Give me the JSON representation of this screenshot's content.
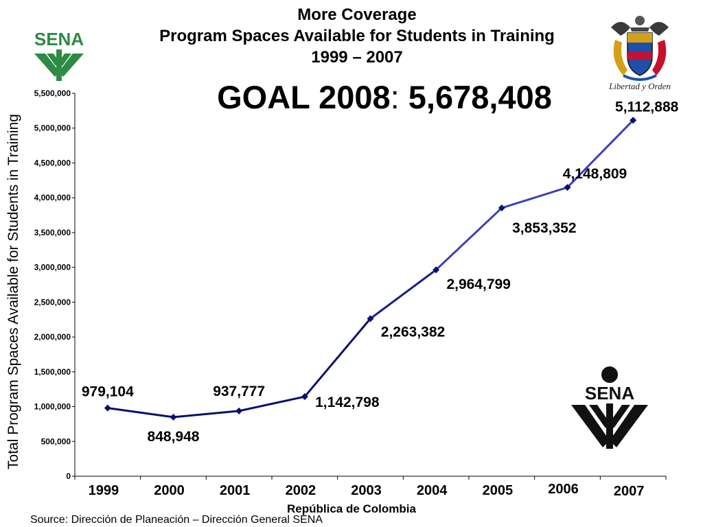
{
  "title": {
    "line1": "More Coverage",
    "line2": "Program Spaces Available for Students in Training",
    "line3": "1999 – 2007"
  },
  "goal": {
    "label": "GOAL 2008",
    "separator": ":",
    "value": "5,678,408"
  },
  "y_axis_label": "Total Program Spaces Available for Students in Training",
  "footer": {
    "center": "República de Colombia",
    "source": "Source: Dirección de Planeación – Dirección General SENA"
  },
  "logos": {
    "sena_text": "SENA",
    "coat_motto": "Libertad y Orden"
  },
  "colors": {
    "line_dark": "#0a0f6e",
    "line_light": "#3b3fb8",
    "marker": "#0a0f6e",
    "sena_green": "#2e8b43",
    "sena_black": "#111111"
  },
  "chart_data": {
    "type": "line",
    "categories": [
      "1999",
      "2000",
      "2001",
      "2002",
      "2003",
      "2004",
      "2005",
      "2006",
      "2007"
    ],
    "values": [
      979104,
      848948,
      937777,
      1142798,
      2263382,
      2964799,
      3853352,
      4148809,
      5112888
    ],
    "data_labels": [
      "979,104",
      "848,948",
      "937,777",
      "1,142,798",
      "2,263,382",
      "2,964,799",
      "3,853,352",
      "4,148,809",
      "5,112,888"
    ],
    "yticks": [
      "0",
      "500,000",
      "1,000,000",
      "1,500,000",
      "2,000,000",
      "2,500,000",
      "3,000,000",
      "3,500,000",
      "4,000,000",
      "4,500,000",
      "5,000,000",
      "5,500,000"
    ],
    "ylim": [
      0,
      5500000
    ],
    "grid": false,
    "legend": "none"
  }
}
